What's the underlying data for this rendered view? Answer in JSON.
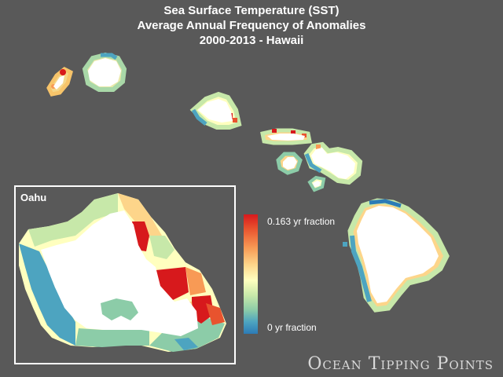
{
  "title": {
    "line1": "Sea Surface Temperature (SST)",
    "line2": "Average Annual Frequency of Anomalies",
    "line3": "2000-2013 - Hawaii"
  },
  "inset": {
    "label": "Oahu"
  },
  "legend": {
    "max_label": "0.163 yr fraction",
    "min_label": "0 yr fraction",
    "max_value": 0.163,
    "min_value": 0,
    "colors": [
      "#d7191c",
      "#f89a55",
      "#fdd58a",
      "#ffffbf",
      "#8ccca8",
      "#2c7bb6"
    ]
  },
  "islands": [
    "Niihau",
    "Kauai",
    "Oahu",
    "Molokai",
    "Lanai",
    "Maui",
    "Kahoolawe",
    "Hawaii"
  ],
  "logo": {
    "text": "Ocean Tipping Points"
  },
  "colors": {
    "background": "#595959",
    "land": "#ffffff",
    "frame": "#ffffff"
  }
}
